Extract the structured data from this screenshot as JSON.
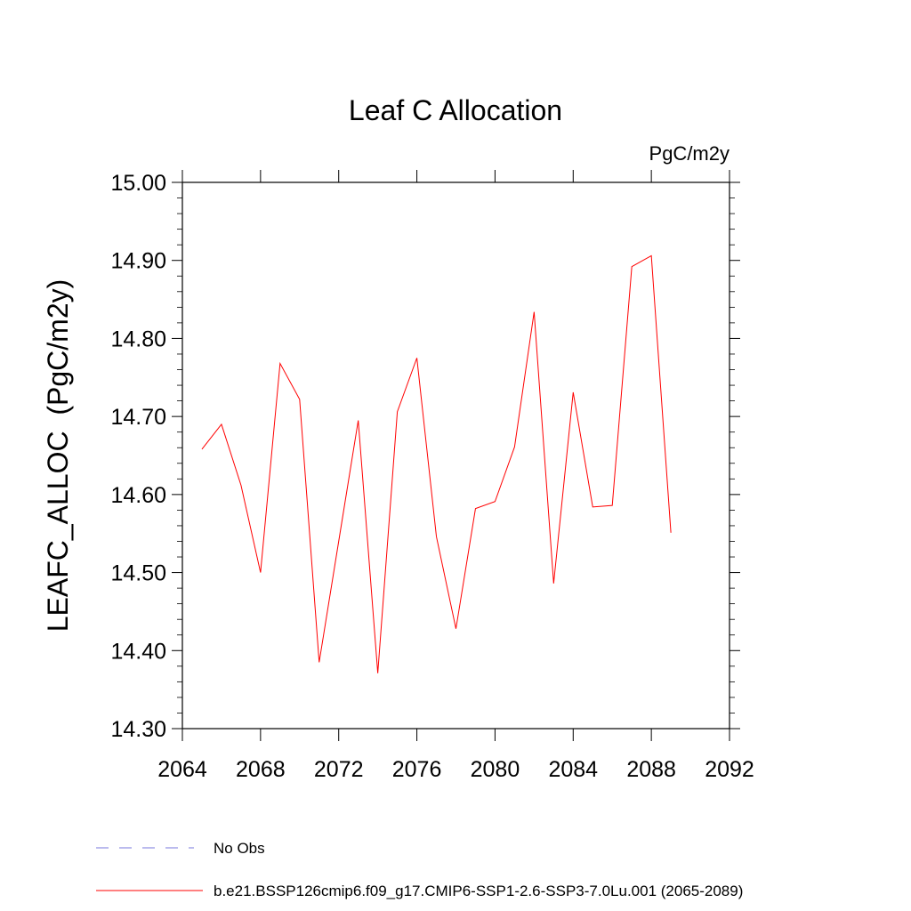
{
  "chart_data": {
    "type": "line",
    "title": "Leaf C Allocation",
    "units_label": "PgC/m2y",
    "ylabel": "LEAFC_ALLOC  (PgC/m2y)",
    "xlabel": "",
    "xlim": [
      2064,
      2092
    ],
    "ylim": [
      14.3,
      15.0
    ],
    "x_ticks": [
      2064,
      2068,
      2072,
      2076,
      2080,
      2084,
      2088,
      2092
    ],
    "x_tick_labels": [
      "2064",
      "2068",
      "2072",
      "2076",
      "2080",
      "2084",
      "2088",
      "2092"
    ],
    "y_ticks": [
      14.3,
      14.4,
      14.5,
      14.6,
      14.7,
      14.8,
      14.9,
      15.0
    ],
    "y_tick_labels": [
      "14.30",
      "14.40",
      "14.50",
      "14.60",
      "14.70",
      "14.80",
      "14.90",
      "15.00"
    ],
    "grid": false,
    "legend_position": "bottom-left",
    "series": [
      {
        "name": "b.e21.BSSP126cmip6.f09_g17.CMIP6-SSP1-2.6-SSP3-7.0Lu.001 (2065-2089)",
        "color": "#ff0000",
        "dash": "solid",
        "x": [
          2065,
          2066,
          2067,
          2068,
          2069,
          2070,
          2071,
          2072,
          2073,
          2074,
          2075,
          2076,
          2077,
          2078,
          2079,
          2080,
          2081,
          2082,
          2083,
          2084,
          2085,
          2086,
          2087,
          2088,
          2089
        ],
        "values": [
          14.658,
          14.69,
          14.612,
          14.5,
          14.768,
          14.722,
          14.385,
          14.54,
          14.695,
          14.371,
          14.706,
          14.775,
          14.546,
          14.428,
          14.582,
          14.591,
          14.661,
          14.834,
          14.486,
          14.731,
          14.584,
          14.586,
          14.892,
          14.906,
          14.551
        ]
      },
      {
        "name": "No Obs",
        "color": "#7777dd",
        "dash": "dashed",
        "x": [],
        "values": []
      }
    ]
  }
}
